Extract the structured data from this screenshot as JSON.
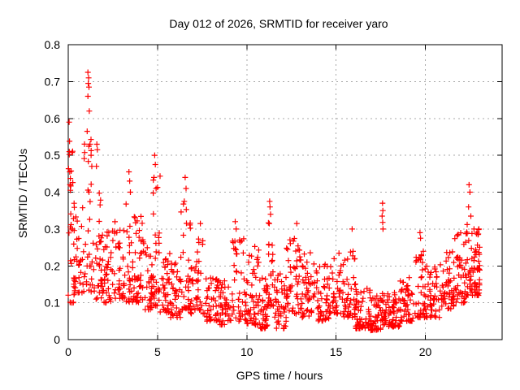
{
  "chart_data": {
    "type": "scatter",
    "title": "Day 012 of 2026, SRMTID for receiver yaro",
    "xlabel": "GPS time / hours",
    "ylabel": "SRMTID / TECUs",
    "xlim": [
      0,
      24.3
    ],
    "ylim": [
      0,
      0.8
    ],
    "xticks": {
      "values": [
        0,
        5,
        10,
        15,
        20
      ],
      "labels": [
        "0",
        "5",
        "10",
        "15",
        "20"
      ]
    },
    "yticks": {
      "values": [
        0,
        0.1,
        0.2,
        0.3,
        0.4,
        0.5,
        0.6,
        0.7,
        0.8
      ],
      "labels": [
        "0",
        "0.1",
        "0.2",
        "0.3",
        "0.4",
        "0.5",
        "0.6",
        "0.7",
        "0.8"
      ]
    },
    "grid": {
      "show": true,
      "style": "dashed",
      "color": "#aaaaaa"
    },
    "marker": {
      "shape": "plus",
      "color": "#ff0000",
      "size": 7
    },
    "series_name": "SRMTID for receiver yaro",
    "data_start_hour": 0.0,
    "data_end_hour": 23.05,
    "clusters": [
      [
        0.0,
        0.35,
        22,
        0.1,
        0.52
      ],
      [
        0.02,
        0.25,
        8,
        0.3,
        0.59
      ],
      [
        0.3,
        0.8,
        30,
        0.12,
        0.38
      ],
      [
        0.8,
        1.4,
        34,
        0.13,
        0.55
      ],
      [
        1.4,
        2.0,
        38,
        0.11,
        0.4
      ],
      [
        2.0,
        2.6,
        36,
        0.1,
        0.3
      ],
      [
        2.6,
        3.2,
        36,
        0.11,
        0.33
      ],
      [
        3.2,
        3.7,
        30,
        0.1,
        0.4
      ],
      [
        3.7,
        4.3,
        40,
        0.1,
        0.35
      ],
      [
        4.3,
        4.75,
        30,
        0.08,
        0.26
      ],
      [
        4.75,
        5.15,
        30,
        0.09,
        0.45
      ],
      [
        5.15,
        5.7,
        34,
        0.07,
        0.24
      ],
      [
        5.7,
        6.3,
        36,
        0.06,
        0.22
      ],
      [
        6.3,
        6.85,
        34,
        0.08,
        0.38
      ],
      [
        6.85,
        7.6,
        40,
        0.07,
        0.28
      ],
      [
        7.6,
        8.4,
        42,
        0.05,
        0.18
      ],
      [
        8.4,
        9.2,
        44,
        0.04,
        0.16
      ],
      [
        9.2,
        10.0,
        46,
        0.05,
        0.3
      ],
      [
        10.0,
        10.7,
        46,
        0.04,
        0.26
      ],
      [
        10.7,
        11.15,
        36,
        0.03,
        0.18
      ],
      [
        11.15,
        11.5,
        26,
        0.09,
        0.33
      ],
      [
        11.5,
        12.2,
        42,
        0.03,
        0.18
      ],
      [
        12.2,
        13.0,
        48,
        0.07,
        0.28
      ],
      [
        13.0,
        13.8,
        48,
        0.06,
        0.24
      ],
      [
        13.8,
        14.6,
        44,
        0.05,
        0.21
      ],
      [
        14.6,
        15.4,
        44,
        0.07,
        0.24
      ],
      [
        15.4,
        16.1,
        42,
        0.06,
        0.27
      ],
      [
        16.1,
        16.9,
        50,
        0.03,
        0.14
      ],
      [
        16.9,
        17.55,
        50,
        0.025,
        0.12
      ],
      [
        17.55,
        17.8,
        20,
        0.04,
        0.13
      ],
      [
        17.8,
        18.6,
        50,
        0.035,
        0.14
      ],
      [
        18.6,
        19.4,
        48,
        0.05,
        0.17
      ],
      [
        19.4,
        20.0,
        42,
        0.06,
        0.24
      ],
      [
        20.0,
        20.8,
        48,
        0.06,
        0.2
      ],
      [
        20.8,
        21.6,
        48,
        0.08,
        0.24
      ],
      [
        21.6,
        22.3,
        46,
        0.1,
        0.29
      ],
      [
        22.3,
        22.75,
        32,
        0.12,
        0.34
      ],
      [
        22.75,
        23.05,
        40,
        0.12,
        0.3
      ]
    ],
    "peaks": [
      [
        0.05,
        0.59
      ],
      [
        0.06,
        0.51
      ],
      [
        0.08,
        0.455
      ],
      [
        0.1,
        0.42
      ],
      [
        1.1,
        0.725
      ],
      [
        1.14,
        0.71
      ],
      [
        1.12,
        0.695
      ],
      [
        1.16,
        0.685
      ],
      [
        1.1,
        0.66
      ],
      [
        1.18,
        0.62
      ],
      [
        1.06,
        0.565
      ],
      [
        1.22,
        0.53
      ],
      [
        1.28,
        0.5
      ],
      [
        1.32,
        0.47
      ],
      [
        1.6,
        0.53
      ],
      [
        1.63,
        0.515
      ],
      [
        1.58,
        0.47
      ],
      [
        3.4,
        0.455
      ],
      [
        3.44,
        0.43
      ],
      [
        3.48,
        0.4
      ],
      [
        4.84,
        0.5
      ],
      [
        4.88,
        0.475
      ],
      [
        4.8,
        0.44
      ],
      [
        4.92,
        0.41
      ],
      [
        6.55,
        0.44
      ],
      [
        6.6,
        0.41
      ],
      [
        6.5,
        0.375
      ],
      [
        7.4,
        0.315
      ],
      [
        9.35,
        0.32
      ],
      [
        9.4,
        0.3
      ],
      [
        11.28,
        0.375
      ],
      [
        11.3,
        0.36
      ],
      [
        11.33,
        0.34
      ],
      [
        11.26,
        0.315
      ],
      [
        12.8,
        0.315
      ],
      [
        15.9,
        0.3
      ],
      [
        17.6,
        0.37
      ],
      [
        17.62,
        0.35
      ],
      [
        17.58,
        0.335
      ],
      [
        17.61,
        0.318
      ],
      [
        17.63,
        0.3
      ],
      [
        19.7,
        0.29
      ],
      [
        19.73,
        0.275
      ],
      [
        22.45,
        0.42
      ],
      [
        22.5,
        0.4
      ],
      [
        22.42,
        0.36
      ],
      [
        22.55,
        0.335
      ],
      [
        23.0,
        0.3
      ],
      [
        22.95,
        0.285
      ]
    ]
  }
}
